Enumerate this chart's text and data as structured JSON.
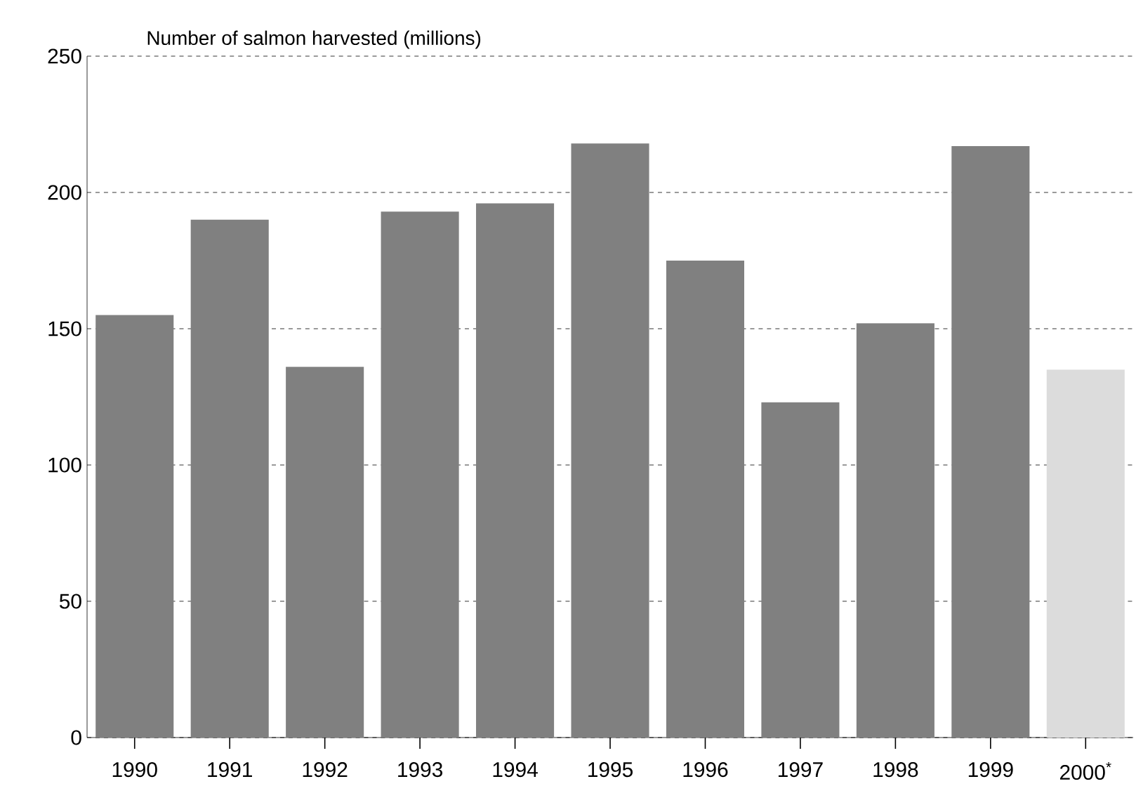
{
  "chart_data": {
    "type": "bar",
    "title": "Number of salmon harvested (millions)",
    "categories": [
      "1990",
      "1991",
      "1992",
      "1993",
      "1994",
      "1995",
      "1996",
      "1997",
      "1998",
      "1999",
      "2000$^{*}$"
    ],
    "values": [
      155,
      190,
      136,
      193,
      196,
      218,
      175,
      123,
      152,
      217,
      135
    ],
    "colors": [
      "#808080",
      "#808080",
      "#808080",
      "#808080",
      "#808080",
      "#808080",
      "#808080",
      "#808080",
      "#808080",
      "#808080",
      "#dcdcdc"
    ],
    "ylim": [
      0,
      250
    ],
    "yticks": [
      0,
      50,
      100,
      150,
      200,
      250
    ],
    "grid": "y"
  }
}
